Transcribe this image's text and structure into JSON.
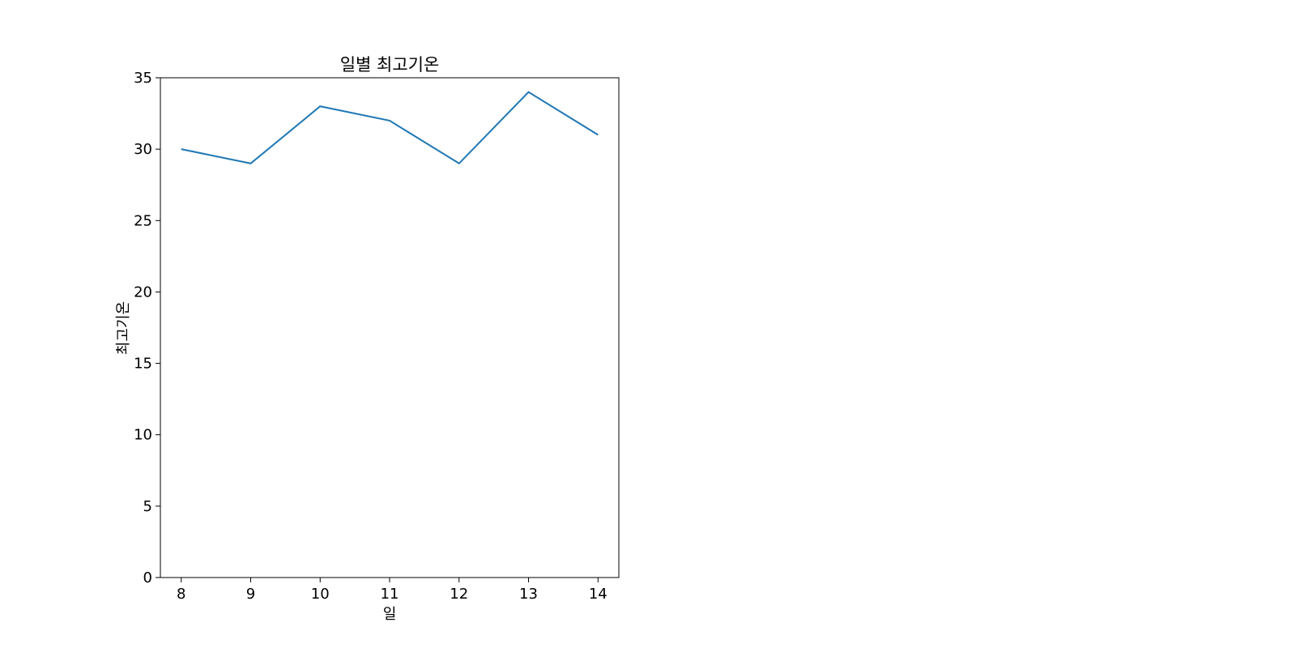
{
  "chart_data": {
    "type": "line",
    "title": "일별 최고기온",
    "xlabel": "일",
    "ylabel": "최고기온",
    "x": [
      8,
      9,
      10,
      11,
      12,
      13,
      14
    ],
    "series": [
      {
        "values": [
          30,
          29,
          33,
          32,
          29,
          34,
          31
        ],
        "color": "#1f77b4"
      }
    ],
    "xlim": [
      7.7,
      14.3
    ],
    "ylim": [
      0,
      35
    ],
    "xticks": [
      8,
      9,
      10,
      11,
      12,
      13,
      14
    ],
    "yticks": [
      0,
      5,
      10,
      15,
      20,
      25,
      30,
      35
    ],
    "grid": false,
    "legend": "none"
  }
}
